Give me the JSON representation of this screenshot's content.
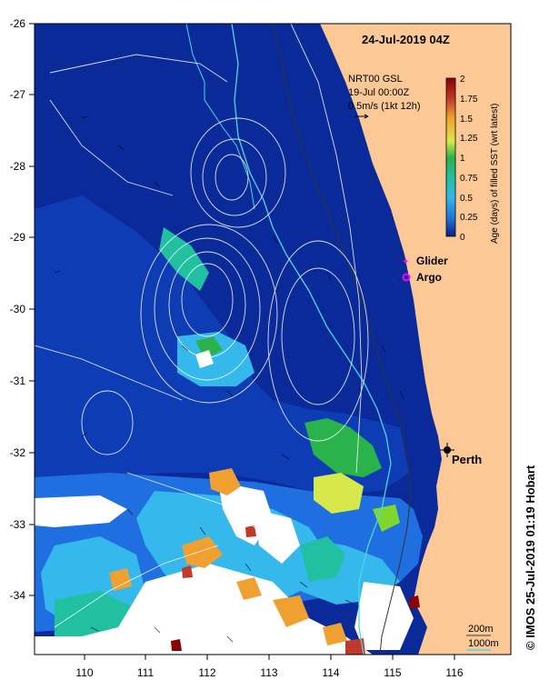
{
  "title": "24-Jul-2019 04Z",
  "model": {
    "line1": "NRT00 GSL",
    "line2": "19-Jul 00:00Z",
    "vector_scale": "0.5m/s (1kt 12h)"
  },
  "colorbar": {
    "label": "Age (days) of filled SST (wrt latest)",
    "ticks": [
      "2",
      "1.75",
      "1.5",
      "1.25",
      "1",
      "0.75",
      "0.5",
      "0.25",
      "0"
    ],
    "colors": [
      "#8b0000",
      "#c0392b",
      "#e67e22",
      "#f0a030",
      "#d7e84a",
      "#7fd62c",
      "#2ab34a",
      "#20c0a0",
      "#30b8e8",
      "#1e78d8",
      "#0a1e8c"
    ]
  },
  "legend": [
    {
      "label": "Glider",
      "color": "#ff00ff",
      "icon": "star-icon"
    },
    {
      "label": "Argo",
      "color": "#ff00ff",
      "icon": "circle-icon"
    }
  ],
  "city": {
    "label": "Perth"
  },
  "isobath_legend": [
    {
      "label": "200m",
      "color": "#3a3a3a"
    },
    {
      "label": "1000m",
      "color": "#4fd6e8"
    }
  ],
  "axes": {
    "x_ticks": [
      "110",
      "111",
      "112",
      "113",
      "114",
      "115",
      "116"
    ],
    "y_ticks": [
      "-26",
      "-27",
      "-28",
      "-29",
      "-30",
      "-31",
      "-32",
      "-33",
      "-34"
    ]
  },
  "copyright": "© IMOS 25-Jul-2019 01:19 Hobart",
  "colors": {
    "land": "#fbc896",
    "ocean_deep": "#0a1e8c",
    "ocean_mid": "#0a2a9a",
    "no_data": "#ffffff"
  }
}
